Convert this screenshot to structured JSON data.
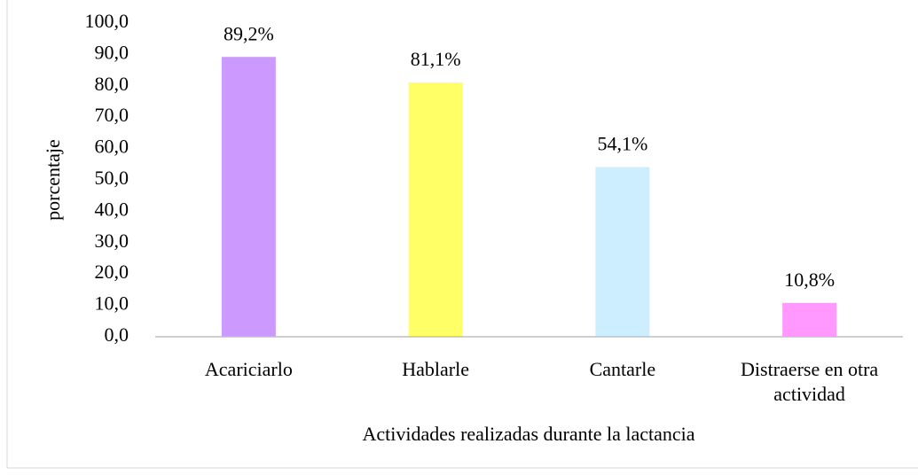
{
  "chart_data": {
    "type": "bar",
    "x_label": "Actividades realizadas durante la lactancia",
    "y_label": "porcentaje",
    "categories": [
      "Acariciarlo",
      "Hablarle",
      "Cantarle",
      "Distraerse en otra actividad"
    ],
    "values": [
      89.2,
      81.1,
      54.1,
      10.8
    ],
    "value_labels": [
      "89,2%",
      "81,1%",
      "54,1%",
      "10,8%"
    ],
    "colors": [
      "#cc99ff",
      "#ffff66",
      "#cceeff",
      "#ff99ff"
    ],
    "ylim": [
      0,
      100
    ],
    "yticks": [
      {
        "value": 0,
        "label": "0,0"
      },
      {
        "value": 10,
        "label": "10,0"
      },
      {
        "value": 20,
        "label": "20,0"
      },
      {
        "value": 30,
        "label": "30,0"
      },
      {
        "value": 40,
        "label": "40,0"
      },
      {
        "value": 50,
        "label": "50,0"
      },
      {
        "value": 60,
        "label": "60,0"
      },
      {
        "value": 70,
        "label": "70,0"
      },
      {
        "value": 80,
        "label": "80,0"
      },
      {
        "value": 90,
        "label": "90,0"
      },
      {
        "value": 100,
        "label": "100,0"
      }
    ],
    "grid": false
  }
}
